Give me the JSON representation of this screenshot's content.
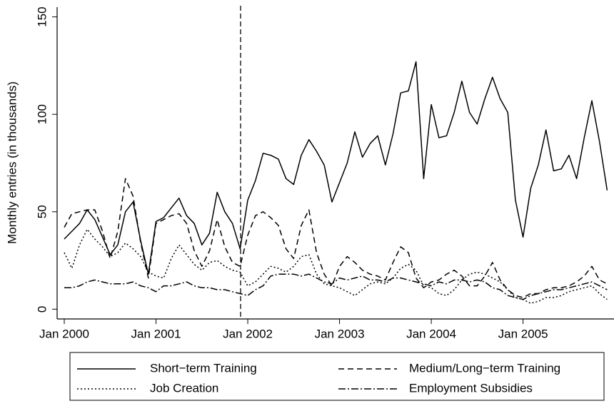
{
  "chart_data": {
    "type": "line",
    "y_label": "Monthly entries (in thousands)",
    "categories": [
      "Jan 2000",
      null,
      null,
      null,
      null,
      null,
      null,
      null,
      null,
      null,
      null,
      null,
      "Jan 2001",
      null,
      null,
      null,
      null,
      null,
      null,
      null,
      null,
      null,
      null,
      null,
      "Jan 2002",
      null,
      null,
      null,
      null,
      null,
      null,
      null,
      null,
      null,
      null,
      null,
      "Jan 2003",
      null,
      null,
      null,
      null,
      null,
      null,
      null,
      null,
      null,
      null,
      null,
      "Jan 2004",
      null,
      null,
      null,
      null,
      null,
      null,
      null,
      null,
      null,
      null,
      null,
      "Jan 2005",
      null,
      null,
      null,
      null,
      null,
      null,
      null,
      null,
      null,
      null,
      null
    ],
    "ylim": [
      -5,
      155
    ],
    "yticks": [
      0,
      50,
      100,
      150
    ],
    "series": [
      {
        "name": "Short−term Training",
        "color": "#000000",
        "style": "solid",
        "values": [
          36,
          40,
          44,
          51,
          46,
          37,
          28,
          33,
          50,
          55,
          35,
          18,
          45,
          47,
          52,
          57,
          48,
          44,
          33,
          39,
          60,
          50,
          44,
          31,
          56,
          66,
          80,
          79,
          77,
          67,
          64,
          79,
          87,
          81,
          74,
          55,
          65,
          75,
          91,
          78,
          85,
          89,
          74,
          90,
          111,
          112,
          127,
          67,
          105,
          88,
          89,
          101,
          117,
          101,
          95,
          108,
          119,
          108,
          101,
          56,
          37,
          62,
          74,
          92,
          71,
          72,
          79,
          67,
          88,
          107,
          86,
          61
        ]
      },
      {
        "name": "Medium/Long−term Training",
        "color": "#000000",
        "style": "dashed",
        "values": [
          42,
          49,
          50,
          51,
          51,
          40,
          26,
          40,
          67,
          58,
          34,
          16,
          44,
          46,
          48,
          49,
          44,
          30,
          22,
          30,
          46,
          32,
          24,
          22,
          38,
          48,
          50,
          47,
          43,
          31,
          26,
          43,
          51,
          29,
          18,
          12,
          22,
          27,
          24,
          20,
          18,
          17,
          15,
          24,
          32,
          29,
          16,
          11,
          14,
          15,
          18,
          20,
          17,
          12,
          12,
          17,
          24,
          15,
          10,
          7,
          6,
          8,
          8,
          10,
          11,
          11,
          12,
          14,
          17,
          22,
          15,
          13
        ]
      },
      {
        "name": "Job Creation",
        "color": "#000000",
        "style": "dotted",
        "values": [
          29,
          21,
          33,
          41,
          36,
          32,
          27,
          29,
          34,
          31,
          27,
          19,
          17,
          16,
          26,
          33,
          28,
          23,
          20,
          24,
          25,
          22,
          20,
          19,
          12,
          14,
          18,
          22,
          21,
          19,
          22,
          27,
          28,
          18,
          13,
          12,
          11,
          9,
          7,
          10,
          13,
          14,
          13,
          16,
          21,
          23,
          20,
          12,
          11,
          8,
          7,
          10,
          15,
          18,
          19,
          18,
          16,
          14,
          10,
          6,
          5,
          3,
          4,
          6,
          6,
          7,
          9,
          10,
          11,
          12,
          8,
          5
        ]
      },
      {
        "name": "Employment Subsidies",
        "color": "#000000",
        "style": "dashdot",
        "values": [
          11,
          11,
          12,
          14,
          15,
          14,
          13,
          13,
          13,
          14,
          12,
          11,
          9,
          12,
          12,
          13,
          14,
          12,
          11,
          11,
          10,
          10,
          9,
          8,
          7,
          10,
          12,
          17,
          18,
          18,
          18,
          17,
          18,
          16,
          14,
          13,
          16,
          15,
          16,
          17,
          15,
          15,
          14,
          16,
          16,
          15,
          14,
          13,
          12,
          14,
          13,
          15,
          15,
          14,
          15,
          14,
          11,
          10,
          7,
          6,
          5,
          7,
          8,
          9,
          10,
          10,
          11,
          12,
          13,
          14,
          12,
          10
        ]
      }
    ]
  }
}
